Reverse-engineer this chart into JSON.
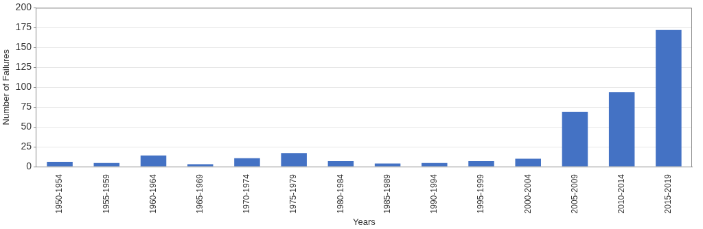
{
  "chart_data": {
    "type": "bar",
    "xlabel": "Years",
    "ylabel": "Number of Failures",
    "categories": [
      "1950-1954",
      "1955-1959",
      "1960-1964",
      "1965-1969",
      "1970-1974",
      "1975-1979",
      "1980-1984",
      "1985-1989",
      "1990-1994",
      "1995-1999",
      "2000-2004",
      "2005-2009",
      "2010-2014",
      "2015-2019"
    ],
    "values": [
      6,
      4.5,
      14,
      3,
      10.5,
      17,
      7,
      4,
      4.5,
      7,
      10,
      69,
      94,
      172
    ],
    "color": "#4472c4",
    "ylim": [
      0,
      200
    ],
    "yticks": [
      0,
      25,
      50,
      75,
      100,
      125,
      150,
      175,
      200
    ],
    "grid": "y"
  }
}
